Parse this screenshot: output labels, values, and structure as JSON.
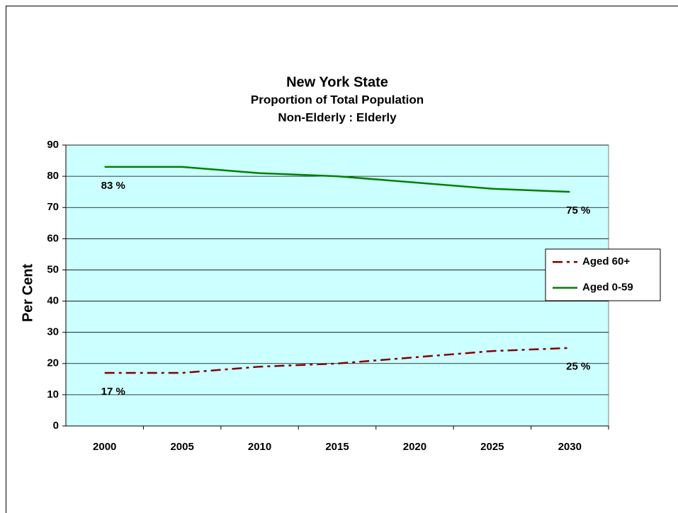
{
  "chart_data": {
    "type": "line",
    "title": "New York State",
    "subtitle": [
      "Proportion of Total Population",
      "Non-Elderly : Elderly"
    ],
    "y_label": "Per Cent",
    "categories": [
      "2000",
      "2005",
      "2010",
      "2015",
      "2020",
      "2025",
      "2030"
    ],
    "series": [
      {
        "name": "Aged 60+",
        "color": "#800000",
        "dash": "dash-dot",
        "values": [
          17,
          17,
          19,
          20,
          22,
          24,
          25
        ],
        "value_labels": [
          "17 %",
          null,
          null,
          null,
          null,
          null,
          "25 %"
        ]
      },
      {
        "name": "Aged 0-59",
        "color": "#008000",
        "dash": "solid",
        "values": [
          83,
          83,
          81,
          80,
          78,
          76,
          75
        ],
        "value_labels": [
          "83 %",
          null,
          null,
          null,
          null,
          null,
          "75 %"
        ]
      }
    ],
    "ylim": [
      0,
      90
    ],
    "yticks": [
      0,
      10,
      20,
      30,
      40,
      50,
      60,
      70,
      80,
      90
    ],
    "grid": true,
    "legend": "right",
    "plot_background": "#ccffff"
  }
}
